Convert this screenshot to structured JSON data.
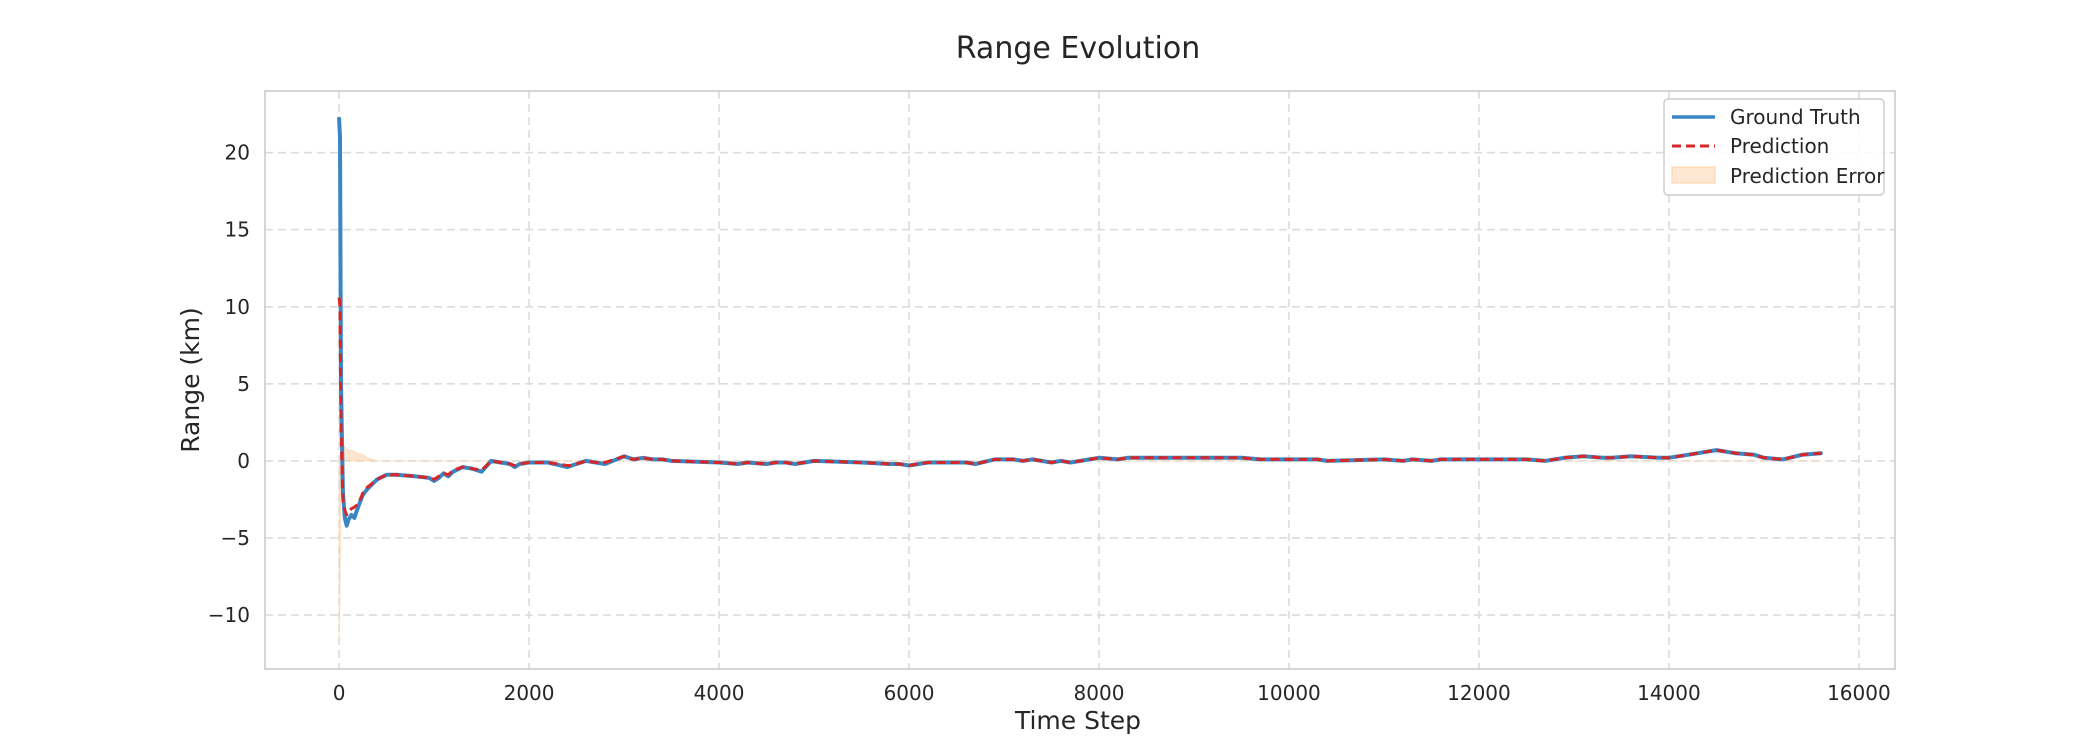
{
  "chart_data": {
    "type": "line",
    "title": "Range Evolution",
    "xlabel": "Time Step",
    "ylabel": "Range (km)",
    "xlim": [
      -780,
      16380
    ],
    "ylim": [
      -13.5,
      24
    ],
    "xticks": [
      0,
      2000,
      4000,
      6000,
      8000,
      10000,
      12000,
      14000,
      16000
    ],
    "xtick_labels": [
      "0",
      "2000",
      "4000",
      "6000",
      "8000",
      "10000",
      "12000",
      "14000",
      "16000"
    ],
    "yticks": [
      -10,
      -5,
      0,
      5,
      10,
      15,
      20
    ],
    "ytick_labels": [
      "−10",
      "−5",
      "0",
      "5",
      "10",
      "15",
      "20"
    ],
    "grid": true,
    "legend_position": "top-right",
    "series": [
      {
        "name": "Ground Truth",
        "style": "solid",
        "color": "#3a86c4",
        "x": [
          0,
          10,
          20,
          40,
          60,
          80,
          100,
          130,
          160,
          200,
          250,
          300,
          400,
          500,
          600,
          800,
          950,
          1000,
          1050,
          1100,
          1150,
          1200,
          1300,
          1400,
          1500,
          1600,
          1700,
          1800,
          1850,
          1900,
          2000,
          2200,
          2400,
          2450,
          2600,
          2700,
          2800,
          3000,
          3100,
          3200,
          3300,
          3400,
          3500,
          4000,
          4200,
          4300,
          4500,
          4600,
          4700,
          4800,
          4900,
          5000,
          5500,
          5800,
          5900,
          6000,
          6100,
          6200,
          6600,
          6700,
          6900,
          7100,
          7200,
          7300,
          7500,
          7600,
          7700,
          7900,
          8000,
          8200,
          8300,
          8400,
          9000,
          9500,
          9700,
          9800,
          10000,
          10300,
          10400,
          11000,
          11200,
          11300,
          11500,
          11600,
          11700,
          12000,
          12500,
          12700,
          12900,
          13100,
          13300,
          13400,
          13600,
          13900,
          14000,
          14200,
          14400,
          14500,
          14700,
          14900,
          15000,
          15200,
          15400,
          15600
        ],
        "y": [
          22.2,
          21.0,
          5.0,
          -2.0,
          -3.7,
          -4.2,
          -3.8,
          -3.5,
          -3.7,
          -3.0,
          -2.2,
          -1.8,
          -1.2,
          -0.9,
          -0.9,
          -1.0,
          -1.1,
          -1.3,
          -1.1,
          -0.8,
          -1.0,
          -0.7,
          -0.4,
          -0.5,
          -0.7,
          0.0,
          -0.1,
          -0.2,
          -0.4,
          -0.2,
          -0.1,
          -0.1,
          -0.4,
          -0.3,
          0.0,
          -0.1,
          -0.2,
          0.3,
          0.1,
          0.2,
          0.1,
          0.1,
          0.0,
          -0.1,
          -0.2,
          -0.1,
          -0.2,
          -0.1,
          -0.1,
          -0.2,
          -0.1,
          0.0,
          -0.1,
          -0.2,
          -0.2,
          -0.3,
          -0.2,
          -0.1,
          -0.1,
          -0.2,
          0.1,
          0.1,
          0.0,
          0.1,
          -0.1,
          0.0,
          -0.1,
          0.1,
          0.2,
          0.1,
          0.2,
          0.2,
          0.2,
          0.2,
          0.1,
          0.1,
          0.1,
          0.1,
          0.0,
          0.1,
          0.0,
          0.1,
          0.0,
          0.1,
          0.1,
          0.1,
          0.1,
          0.0,
          0.2,
          0.3,
          0.2,
          0.2,
          0.3,
          0.2,
          0.2,
          0.4,
          0.6,
          0.7,
          0.5,
          0.4,
          0.2,
          0.1,
          0.4,
          0.5
        ]
      },
      {
        "name": "Prediction",
        "style": "dashed",
        "color": "#d62728",
        "x": [
          0,
          10,
          20,
          40,
          60,
          80,
          100,
          130,
          160,
          200,
          250,
          300,
          400,
          500,
          600,
          800,
          950,
          1000,
          1050,
          1100,
          1150,
          1200,
          1300,
          1400,
          1500,
          1600,
          1700,
          1800,
          1850,
          1900,
          2000,
          2200,
          2400,
          2450,
          2600,
          2700,
          2800,
          3000,
          3100,
          3200,
          3300,
          3400,
          3500,
          4000,
          4200,
          4300,
          4500,
          4600,
          4700,
          4800,
          4900,
          5000,
          5500,
          5800,
          5900,
          6000,
          6100,
          6200,
          6600,
          6700,
          6900,
          7100,
          7200,
          7300,
          7500,
          7600,
          7700,
          7900,
          8000,
          8200,
          8300,
          8400,
          9000,
          9500,
          9700,
          9800,
          10000,
          10300,
          10400,
          11000,
          11200,
          11300,
          11500,
          11600,
          11700,
          12000,
          12500,
          12700,
          12900,
          13100,
          13300,
          13400,
          13600,
          13900,
          14000,
          14200,
          14400,
          14500,
          14700,
          14900,
          15000,
          15200,
          15400,
          15600
        ],
        "y": [
          10.6,
          10.0,
          2.0,
          -2.5,
          -3.2,
          -3.5,
          -3.3,
          -3.1,
          -3.0,
          -2.8,
          -2.1,
          -1.7,
          -1.2,
          -0.9,
          -0.9,
          -1.0,
          -1.1,
          -1.2,
          -1.0,
          -0.8,
          -0.9,
          -0.6,
          -0.4,
          -0.5,
          -0.6,
          0.0,
          -0.1,
          -0.2,
          -0.3,
          -0.2,
          -0.1,
          -0.1,
          -0.3,
          -0.3,
          0.0,
          -0.1,
          -0.1,
          0.3,
          0.1,
          0.2,
          0.1,
          0.1,
          0.0,
          -0.1,
          -0.2,
          -0.1,
          -0.2,
          -0.1,
          -0.1,
          -0.2,
          -0.1,
          0.0,
          -0.1,
          -0.2,
          -0.2,
          -0.3,
          -0.2,
          -0.1,
          -0.1,
          -0.2,
          0.1,
          0.1,
          0.0,
          0.1,
          -0.1,
          0.0,
          -0.1,
          0.1,
          0.2,
          0.1,
          0.2,
          0.2,
          0.2,
          0.2,
          0.1,
          0.1,
          0.1,
          0.1,
          0.0,
          0.1,
          0.0,
          0.1,
          0.0,
          0.1,
          0.1,
          0.1,
          0.1,
          0.0,
          0.2,
          0.3,
          0.2,
          0.2,
          0.3,
          0.2,
          0.2,
          0.4,
          0.6,
          0.7,
          0.5,
          0.4,
          0.2,
          0.1,
          0.4,
          0.5
        ]
      },
      {
        "name": "Prediction Error",
        "style": "fill",
        "color": "#fdd0a8",
        "x": [
          0,
          10,
          20,
          40,
          60,
          80,
          100,
          130,
          160,
          200,
          250,
          300,
          350,
          400,
          600,
          800,
          1000,
          1500,
          2000,
          3000,
          4000,
          5000,
          6000,
          8000,
          10000,
          12000,
          14000,
          15600
        ],
        "y": [
          -11.7,
          -8.0,
          1.2,
          1.0,
          0.9,
          0.8,
          0.7,
          0.7,
          0.6,
          0.5,
          0.4,
          0.2,
          0.1,
          0.0,
          0.0,
          0.0,
          0.0,
          0.0,
          0.0,
          0.0,
          0.0,
          0.0,
          0.0,
          0.0,
          0.0,
          0.0,
          0.0,
          0.0
        ]
      }
    ]
  }
}
